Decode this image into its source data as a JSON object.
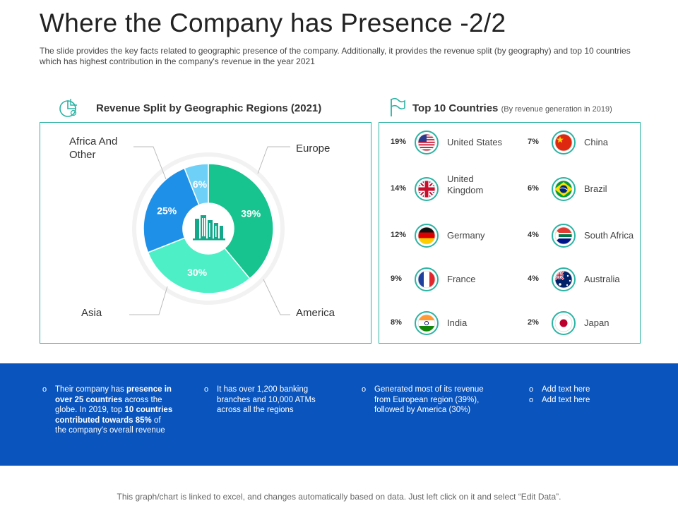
{
  "slide": {
    "title": "Where the Company has Presence -2/2",
    "subtitle": "The slide provides  the key facts related to geographic  presence of the company. Additionally, it provides  the revenue  split (by geography) and top 10 countries which has highest contribution in the company's revenue  in the year 2021"
  },
  "revenue_section": {
    "heading": "Revenue Split by Geographic Regions (2021)"
  },
  "countries_section": {
    "heading": "Top 10 Countries",
    "subheading": "(By revenue generation in 2019)"
  },
  "chart_data": {
    "type": "pie",
    "title": "Revenue Split by Geographic Regions (2021)",
    "categories": [
      "Europe",
      "America",
      "Asia",
      "Africa And Other"
    ],
    "values": [
      39,
      30,
      25,
      6
    ],
    "value_labels": [
      "39%",
      "30%",
      "25%",
      "6%"
    ],
    "colors": [
      "#17c38e",
      "#4df0c6",
      "#1e90e8",
      "#6fd0f7"
    ],
    "label_colors": [
      "#ffffff",
      "#ffffff",
      "#ffffff",
      "#ffffff"
    ]
  },
  "pie_labels": {
    "europe": "Europe",
    "america": "America",
    "asia": "Asia",
    "africa": "Africa And Other"
  },
  "countries": [
    {
      "pct": "19%",
      "name": "United States",
      "flag": "us-flag"
    },
    {
      "pct": "14%",
      "name": "United Kingdom",
      "flag": "uk-flag"
    },
    {
      "pct": "12%",
      "name": "Germany",
      "flag": "germany-flag"
    },
    {
      "pct": "9%",
      "name": "France",
      "flag": "france-flag"
    },
    {
      "pct": "8%",
      "name": "India",
      "flag": "india-flag"
    },
    {
      "pct": "7%",
      "name": "China",
      "flag": "china-flag"
    },
    {
      "pct": "6%",
      "name": "Brazil",
      "flag": "brazil-flag"
    },
    {
      "pct": "4%",
      "name": "South Africa",
      "flag": "south-africa-flag"
    },
    {
      "pct": "4%",
      "name": "Australia",
      "flag": "australia-flag"
    },
    {
      "pct": "2%",
      "name": "Japan",
      "flag": "japan-flag"
    }
  ],
  "bullets": {
    "b1": {
      "t1": "Their company has ",
      "t2": "presence in over 25 countries",
      "t3": " across the globe. In 2019, top ",
      "t4": "10 countries contributed towards 85%",
      "t5": " of the company's overall revenue"
    },
    "b2": "It has over 1,200 banking branches and 10,000 ATMs across all the regions",
    "b3": "Generated most of its revenue from European region (39%), followed by America (30%)",
    "b4": [
      "Add text here",
      "Add text here"
    ]
  },
  "footer": "This graph/chart is linked to excel, and changes automatically based on data.  Just left click on it and select “Edit Data”.",
  "colors": {
    "accent_teal": "#2bb3a3",
    "band_blue": "#0a54be",
    "icon_green": "#13a88a"
  }
}
